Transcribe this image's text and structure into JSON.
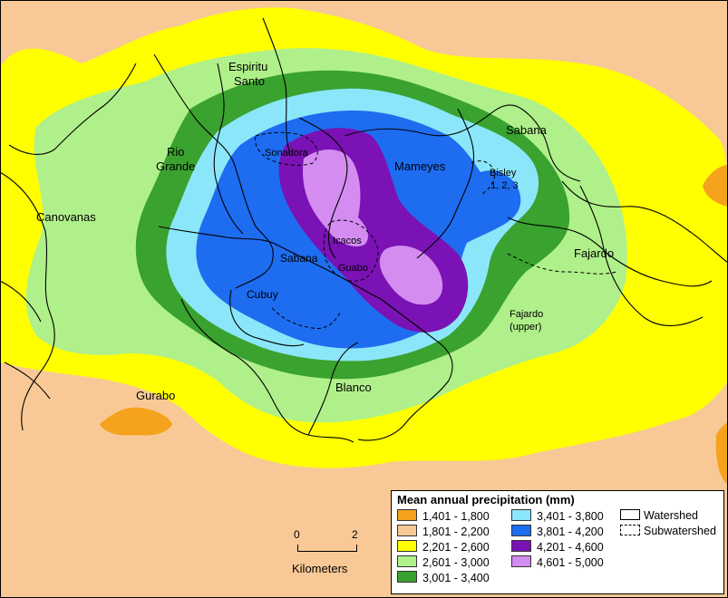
{
  "map": {
    "labels": {
      "espiritu": "Espiritu",
      "santo": "Santo",
      "rio": "Rio",
      "grande": "Grande",
      "sabana_ne": "Sabana",
      "sonadora": "Sonadora",
      "mameyes": "Mameyes",
      "bisley": "Bisley",
      "bisley_nums": "1, 2, 3",
      "canovanas": "Canovanas",
      "icacos": "Icacos",
      "sabana_c": "Sabana",
      "guabo": "Guabo",
      "cubuy": "Cubuy",
      "fajardo": "Fajardo",
      "fajardo_u1": "Fajardo",
      "fajardo_u2": "(upper)",
      "gurabo": "Gurabo",
      "blanco": "Blanco"
    }
  },
  "legend": {
    "title": "Mean annual precipitation (mm)",
    "classes": [
      {
        "range": "1,401 - 1,800",
        "color": "#F5A21C"
      },
      {
        "range": "1,801 - 2,200",
        "color": "#F8C996"
      },
      {
        "range": "2,201 - 2,600",
        "color": "#FFFF00"
      },
      {
        "range": "2,601 - 3,000",
        "color": "#B0F08A"
      },
      {
        "range": "3,001 - 3,400",
        "color": "#3AA22F"
      },
      {
        "range": "3,401 - 3,800",
        "color": "#8CE6FA"
      },
      {
        "range": "3,801 - 4,200",
        "color": "#1E6CF0"
      },
      {
        "range": "4,201 - 4,600",
        "color": "#7A12B5"
      },
      {
        "range": "4,601 - 5,000",
        "color": "#D58CF0"
      }
    ],
    "watershed": "Watershed",
    "subwatershed": "Subwatershed"
  },
  "scale": {
    "zero": "0",
    "two": "2",
    "unit": "Kilometers"
  }
}
